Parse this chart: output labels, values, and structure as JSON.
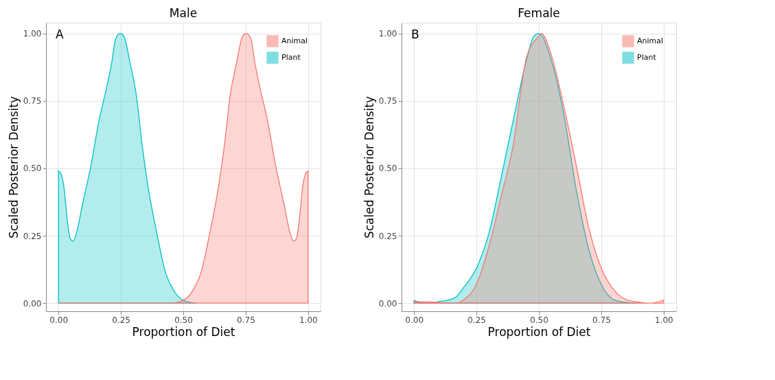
{
  "chart_data": [
    {
      "type": "area",
      "title": "Male",
      "xlabel": "Proportion of Diet",
      "ylabel": "Scaled Posterior Density",
      "annotations": [
        "A"
      ],
      "xlim": [
        -0.05,
        1.05
      ],
      "ylim": [
        -0.03,
        1.04
      ],
      "xticks": [
        {
          "value": 0,
          "label": "0.00"
        },
        {
          "value": 0.25,
          "label": "0.25"
        },
        {
          "value": 0.5,
          "label": "0.50"
        },
        {
          "value": 0.75,
          "label": "0.75"
        },
        {
          "value": 1,
          "label": "1.00"
        }
      ],
      "yticks": [
        {
          "value": 0,
          "label": "0.00"
        },
        {
          "value": 0.25,
          "label": "0.25"
        },
        {
          "value": 0.5,
          "label": "0.50"
        },
        {
          "value": 0.75,
          "label": "0.75"
        },
        {
          "value": 1,
          "label": "1.00"
        }
      ],
      "grid": true,
      "legend": "top right",
      "series": [
        {
          "name": "Animal",
          "color": "#f8766d",
          "x": [
            0,
            0.449,
            0.498,
            0.54,
            0.573,
            0.606,
            0.639,
            0.664,
            0.688,
            0.713,
            0.738,
            0.753,
            0.771,
            0.787,
            0.812,
            0.837,
            0.87,
            0.903,
            0.928,
            0.942,
            0.953,
            0.965,
            0.978,
            0.99,
            1.0
          ],
          "values": [
            0,
            0,
            0.01,
            0.05,
            0.12,
            0.26,
            0.42,
            0.58,
            0.77,
            0.89,
            0.99,
            1.0,
            0.98,
            0.89,
            0.78,
            0.68,
            0.51,
            0.37,
            0.26,
            0.23,
            0.24,
            0.31,
            0.43,
            0.48,
            0.49
          ]
        },
        {
          "name": "Plant",
          "color": "#00bfc4",
          "x": [
            0,
            0.01,
            0.022,
            0.035,
            0.047,
            0.058,
            0.072,
            0.097,
            0.13,
            0.163,
            0.188,
            0.213,
            0.229,
            0.247,
            0.262,
            0.287,
            0.312,
            0.336,
            0.361,
            0.394,
            0.427,
            0.46,
            0.502,
            0.551
          ],
          "values": [
            0.49,
            0.48,
            0.43,
            0.31,
            0.24,
            0.23,
            0.26,
            0.37,
            0.51,
            0.68,
            0.78,
            0.89,
            0.98,
            1.0,
            0.99,
            0.89,
            0.77,
            0.58,
            0.42,
            0.26,
            0.12,
            0.05,
            0.01,
            0
          ]
        }
      ]
    },
    {
      "type": "area",
      "title": "Female",
      "xlabel": "Proportion of Diet",
      "ylabel": "Scaled Posterior Density",
      "annotations": [
        "B"
      ],
      "xlim": [
        -0.05,
        1.05
      ],
      "ylim": [
        -0.03,
        1.04
      ],
      "xticks": [
        {
          "value": 0,
          "label": "0.00"
        },
        {
          "value": 0.25,
          "label": "0.25"
        },
        {
          "value": 0.5,
          "label": "0.50"
        },
        {
          "value": 0.75,
          "label": "0.75"
        },
        {
          "value": 1,
          "label": "1.00"
        }
      ],
      "yticks": [
        {
          "value": 0,
          "label": "0.00"
        },
        {
          "value": 0.25,
          "label": "0.25"
        },
        {
          "value": 0.5,
          "label": "0.50"
        },
        {
          "value": 0.75,
          "label": "0.75"
        },
        {
          "value": 1,
          "label": "1.00"
        }
      ],
      "grid": true,
      "legend": "top right",
      "series": [
        {
          "name": "Animal",
          "color": "#f8766d",
          "x": [
            0,
            0.1,
            0.17,
            0.2,
            0.25,
            0.3,
            0.35,
            0.4,
            0.43,
            0.45,
            0.5,
            0.51,
            0.55,
            0.6,
            0.65,
            0.7,
            0.75,
            0.8,
            0.85,
            0.9,
            0.95,
            1.0
          ],
          "values": [
            0.005,
            0.003,
            0,
            0.013,
            0.07,
            0.21,
            0.4,
            0.6,
            0.8,
            0.91,
            0.99,
            1.0,
            0.92,
            0.73,
            0.51,
            0.28,
            0.13,
            0.05,
            0.013,
            0.004,
            0,
            0.012
          ]
        },
        {
          "name": "Plant",
          "color": "#00bfc4",
          "x": [
            0,
            0.05,
            0.1,
            0.15,
            0.17,
            0.2,
            0.25,
            0.3,
            0.35,
            0.4,
            0.45,
            0.48,
            0.5,
            0.55,
            0.6,
            0.65,
            0.7,
            0.75,
            0.8,
            0.85,
            0.9
          ],
          "values": [
            0.01,
            0,
            0.006,
            0.015,
            0.025,
            0.06,
            0.13,
            0.26,
            0.47,
            0.69,
            0.9,
            0.99,
            1.0,
            0.9,
            0.7,
            0.42,
            0.2,
            0.07,
            0.013,
            0.003,
            0
          ]
        }
      ]
    }
  ]
}
